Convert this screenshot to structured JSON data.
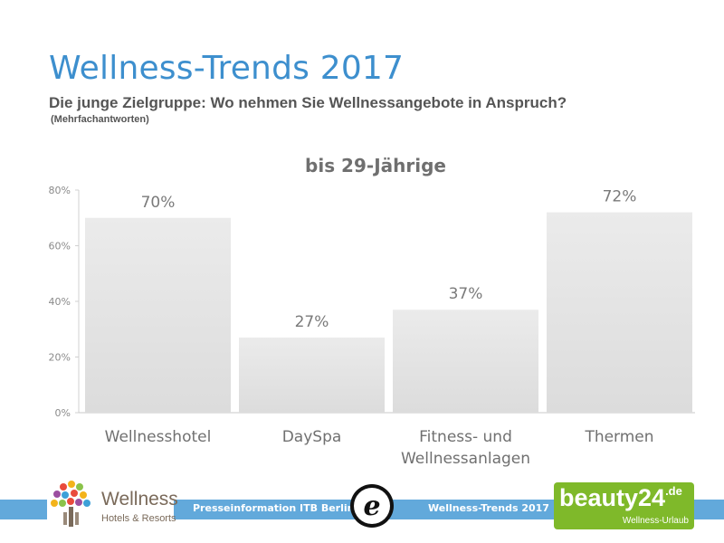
{
  "header": {
    "title": "Wellness-Trends 2017",
    "subtitle": "Die junge Zielgruppe: Wo nehmen Sie Wellnessangebote in Anspruch?",
    "note": "(Mehrfachantworten)"
  },
  "chart_data": {
    "type": "bar",
    "title": "bis 29-Jährige",
    "categories": [
      [
        "Wellnesshotel"
      ],
      [
        "DaySpa"
      ],
      [
        "Fitness- und",
        "Wellnessanlagen"
      ],
      [
        "Thermen"
      ]
    ],
    "values": [
      70,
      27,
      37,
      72
    ],
    "value_labels": [
      "70%",
      "27%",
      "37%",
      "72%"
    ],
    "ylim": [
      0,
      80
    ],
    "yticks": [
      0,
      20,
      40,
      60,
      80
    ],
    "ytick_labels": [
      "0%",
      "20%",
      "40%",
      "60%",
      "80%"
    ],
    "grid": false,
    "bar_color": "#e6e6e6"
  },
  "footer": {
    "press_info": "Presseinformation ITB Berlin",
    "trends": "Wellness-Trends 2017",
    "accent_color": "#62a9db"
  },
  "logos": {
    "wellness_name": "Wellness",
    "wellness_sub": "Hotels & Resorts",
    "badge_letter": "e",
    "beauty_name": "beauty24",
    "beauty_suffix": ".de",
    "beauty_sub": "Wellness-Urlaub",
    "beauty_color": "#7fb92a"
  }
}
